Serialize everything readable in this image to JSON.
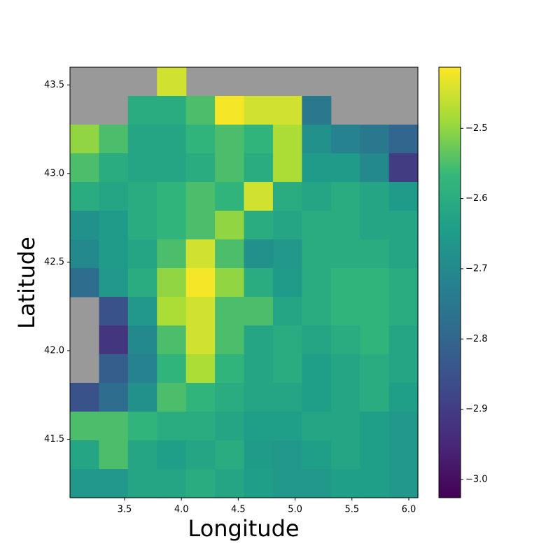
{
  "chart_data": {
    "type": "heatmap",
    "xlabel": "Longitude",
    "ylabel": "Latitude",
    "xlim": [
      3.02,
      6.08
    ],
    "ylim": [
      41.17,
      43.6
    ],
    "xticks": [
      3.5,
      {
        "value": 4,
        "label": "4.0"
      },
      4.5,
      {
        "value": 5,
        "label": "5.0"
      },
      5.5,
      {
        "value": 6,
        "label": "6.0"
      }
    ],
    "yticks": [
      41.5,
      {
        "value": 42,
        "label": "42.0"
      },
      42.5,
      {
        "value": 43,
        "label": "43.0"
      },
      43.5
    ],
    "clim": [
      -3.026,
      -2.413
    ],
    "cticks": [
      {
        "value": -3.0,
        "label": "−3.0"
      },
      {
        "value": -2.9,
        "label": "−2.9"
      },
      {
        "value": -2.8,
        "label": "−2.8"
      },
      {
        "value": -2.7,
        "label": "−2.7"
      },
      {
        "value": -2.6,
        "label": "−2.6"
      },
      {
        "value": -2.5,
        "label": "−2.5"
      }
    ],
    "colormap": "viridis",
    "nan_color": "#999999",
    "values": [
      [
        null,
        null,
        null,
        -2.45,
        null,
        null,
        null,
        null,
        null,
        null,
        null,
        null
      ],
      [
        null,
        null,
        -2.6,
        -2.6,
        -2.55,
        -2.42,
        -2.45,
        -2.45,
        -2.75,
        null,
        null,
        null
      ],
      [
        -2.5,
        -2.55,
        -2.62,
        -2.62,
        -2.58,
        -2.55,
        -2.58,
        -2.48,
        -2.68,
        -2.72,
        -2.75,
        -2.8
      ],
      [
        -2.55,
        -2.6,
        -2.62,
        -2.62,
        -2.6,
        -2.55,
        -2.6,
        -2.48,
        -2.65,
        -2.65,
        -2.7,
        -2.9
      ],
      [
        -2.6,
        -2.62,
        -2.6,
        -2.58,
        -2.55,
        -2.58,
        -2.45,
        -2.6,
        -2.62,
        -2.6,
        -2.62,
        -2.65
      ],
      [
        -2.68,
        -2.65,
        -2.6,
        -2.58,
        -2.55,
        -2.5,
        -2.6,
        -2.62,
        -2.6,
        -2.6,
        -2.62,
        -2.62
      ],
      [
        -2.7,
        -2.65,
        -2.62,
        -2.55,
        -2.45,
        -2.55,
        -2.68,
        -2.66,
        -2.6,
        -2.6,
        -2.6,
        -2.62
      ],
      [
        -2.78,
        -2.66,
        -2.6,
        -2.5,
        -2.42,
        -2.5,
        -2.6,
        -2.65,
        -2.6,
        -2.58,
        -2.58,
        -2.6
      ],
      [
        null,
        -2.85,
        -2.66,
        -2.48,
        -2.45,
        -2.55,
        -2.55,
        -2.62,
        -2.6,
        -2.58,
        -2.58,
        -2.6
      ],
      [
        null,
        -2.92,
        -2.7,
        -2.55,
        -2.45,
        -2.55,
        -2.62,
        -2.6,
        -2.62,
        -2.6,
        -2.58,
        -2.62
      ],
      [
        null,
        -2.82,
        -2.72,
        -2.58,
        -2.48,
        -2.58,
        -2.62,
        -2.6,
        -2.64,
        -2.62,
        -2.6,
        -2.62
      ],
      [
        -2.85,
        -2.78,
        -2.68,
        -2.55,
        -2.58,
        -2.6,
        -2.62,
        -2.62,
        -2.64,
        -2.62,
        -2.6,
        -2.64
      ],
      [
        -2.55,
        -2.55,
        -2.58,
        -2.6,
        -2.6,
        -2.62,
        -2.64,
        -2.64,
        -2.62,
        -2.62,
        -2.64,
        -2.66
      ],
      [
        -2.62,
        -2.55,
        -2.62,
        -2.64,
        -2.62,
        -2.6,
        -2.65,
        -2.66,
        -2.64,
        -2.62,
        -2.64,
        -2.66
      ],
      [
        -2.66,
        -2.66,
        -2.62,
        -2.62,
        -2.6,
        -2.62,
        -2.64,
        -2.66,
        -2.66,
        -2.64,
        -2.64,
        -2.66
      ]
    ]
  }
}
